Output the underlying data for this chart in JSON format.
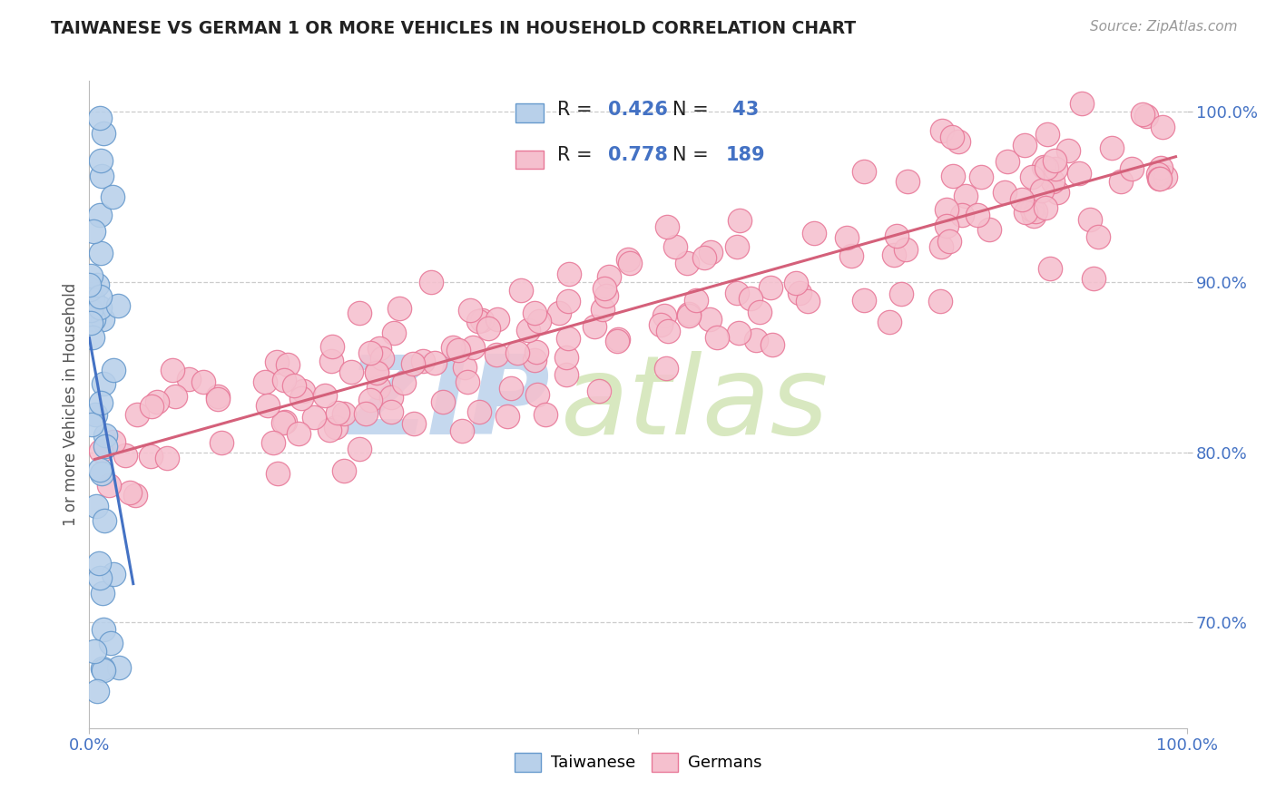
{
  "title": "TAIWANESE VS GERMAN 1 OR MORE VEHICLES IN HOUSEHOLD CORRELATION CHART",
  "source": "Source: ZipAtlas.com",
  "ylabel": "1 or more Vehicles in Household",
  "xlim": [
    0.0,
    1.0
  ],
  "ylim": [
    0.638,
    1.018
  ],
  "yticks": [
    0.7,
    0.8,
    0.9,
    1.0
  ],
  "ytick_labels": [
    "70.0%",
    "80.0%",
    "90.0%",
    "100.0%"
  ],
  "xtick_positions": [
    0.0,
    0.5,
    1.0
  ],
  "xtick_labels": [
    "0.0%",
    "",
    "100.0%"
  ],
  "taiwanese_R": 0.426,
  "taiwanese_N": 43,
  "german_R": 0.778,
  "german_N": 189,
  "blue_fill": "#b8d0ea",
  "blue_edge": "#6699cc",
  "pink_fill": "#f5c0ce",
  "pink_edge": "#e87898",
  "blue_trend": "#4472c4",
  "pink_trend": "#d4607a",
  "watermark_zip_color": "#c5d8ee",
  "watermark_atlas_color": "#d8e8c0",
  "bg_color": "#ffffff",
  "grid_color": "#cccccc",
  "title_color": "#222222",
  "source_color": "#999999",
  "tick_color": "#4472c4",
  "ylabel_color": "#555555",
  "legend_text_color": "#222222",
  "legend_val_color": "#4472c4",
  "tw_seed": 101,
  "de_seed": 202,
  "marker_size": 200
}
